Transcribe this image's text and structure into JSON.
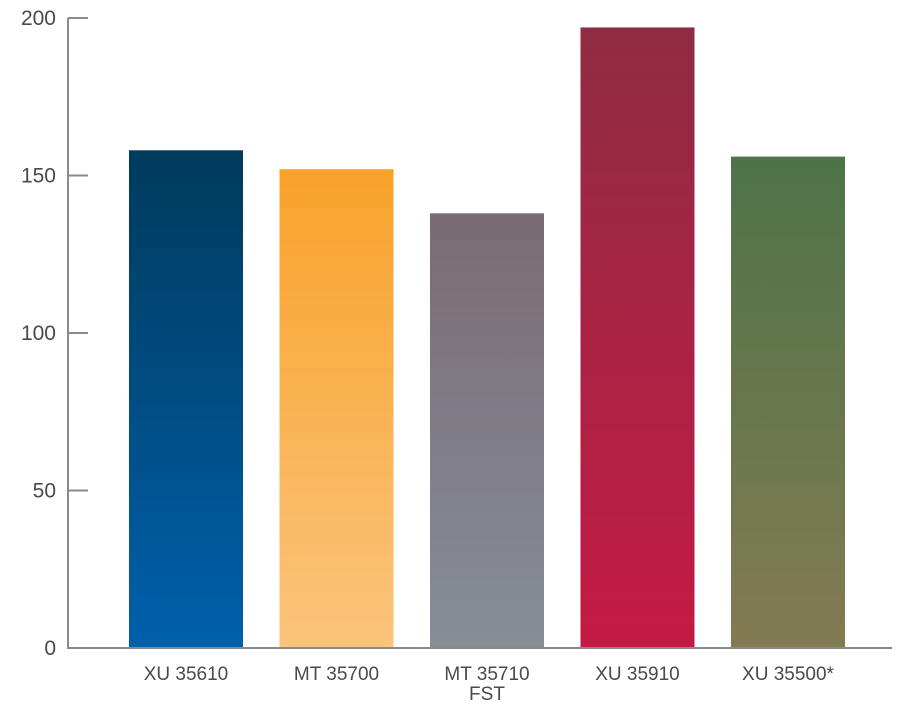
{
  "chart_data": {
    "type": "bar",
    "title": "",
    "xlabel": "",
    "ylabel": "",
    "ylim": [
      0,
      200
    ],
    "yticks": [
      0,
      50,
      100,
      150,
      200
    ],
    "grid": false,
    "categories": [
      [
        "XU 35610"
      ],
      [
        "MT 35700"
      ],
      [
        "MT 35710",
        "FST"
      ],
      [
        "XU 35910"
      ],
      [
        "XU 35500*"
      ]
    ],
    "values": [
      158,
      152,
      138,
      197,
      156
    ],
    "colors": [
      {
        "top": "#003a5c",
        "bottom": "#0060ab"
      },
      {
        "top": "#f8a22a",
        "bottom": "#fbc47c"
      },
      {
        "top": "#7a6b74",
        "bottom": "#868e97"
      },
      {
        "top": "#8f2c43",
        "bottom": "#c41a44"
      },
      {
        "top": "#4e7349",
        "bottom": "#837b52"
      }
    ]
  }
}
